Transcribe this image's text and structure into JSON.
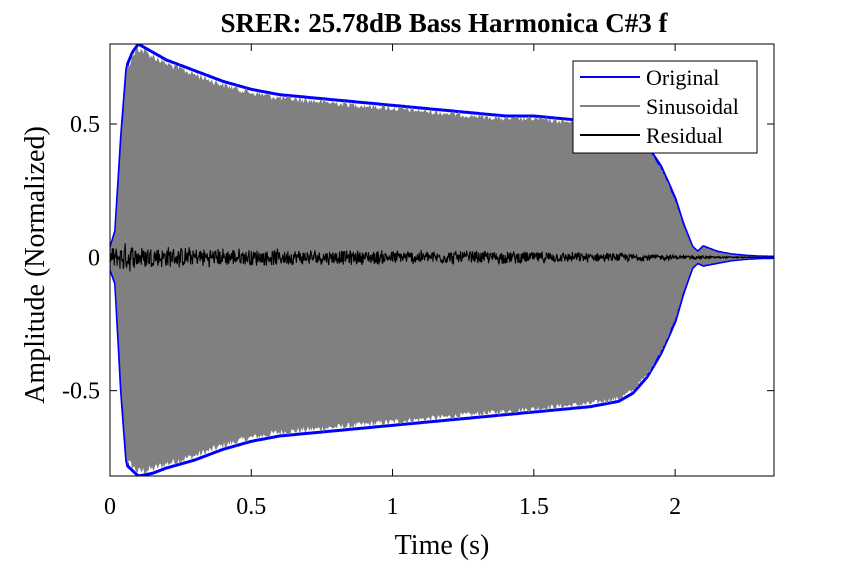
{
  "chart_data": {
    "type": "line",
    "title": "SRER: 25.78dB Bass Harmonica C#3 f",
    "xlabel": "Time (s)",
    "ylabel": "Amplitude (Normalized)",
    "xlim": [
      0,
      2.35
    ],
    "ylim": [
      -0.82,
      0.8
    ],
    "xticks": [
      0,
      0.5,
      1,
      1.5,
      2
    ],
    "xtick_labels": [
      "0",
      "0.5",
      "1",
      "1.5",
      "2"
    ],
    "yticks": [
      -0.5,
      0,
      0.5
    ],
    "ytick_labels": [
      "-0.5",
      "0",
      "0.5"
    ],
    "grid": false,
    "legend_position": "top-right",
    "series": [
      {
        "name": "Original",
        "color": "#0000ff",
        "envelope_x": [
          0,
          0.02,
          0.04,
          0.06,
          0.08,
          0.1,
          0.15,
          0.2,
          0.3,
          0.4,
          0.5,
          0.6,
          0.7,
          0.8,
          0.9,
          1.0,
          1.1,
          1.2,
          1.3,
          1.4,
          1.5,
          1.6,
          1.7,
          1.8,
          1.85,
          1.9,
          1.95,
          2.0,
          2.03,
          2.06,
          2.08,
          2.1,
          2.15,
          2.2,
          2.25,
          2.3,
          2.35
        ],
        "envelope_upper": [
          0.03,
          0.1,
          0.45,
          0.72,
          0.77,
          0.8,
          0.77,
          0.74,
          0.7,
          0.66,
          0.63,
          0.61,
          0.6,
          0.59,
          0.58,
          0.57,
          0.56,
          0.55,
          0.54,
          0.53,
          0.53,
          0.52,
          0.51,
          0.5,
          0.47,
          0.42,
          0.34,
          0.22,
          0.12,
          0.04,
          0.02,
          0.04,
          0.02,
          0.01,
          0.005,
          0.002,
          0.001
        ],
        "envelope_lower": [
          -0.04,
          -0.1,
          -0.5,
          -0.78,
          -0.8,
          -0.82,
          -0.81,
          -0.79,
          -0.76,
          -0.72,
          -0.69,
          -0.67,
          -0.66,
          -0.65,
          -0.64,
          -0.63,
          -0.62,
          -0.61,
          -0.6,
          -0.59,
          -0.58,
          -0.57,
          -0.56,
          -0.54,
          -0.51,
          -0.45,
          -0.36,
          -0.24,
          -0.13,
          -0.04,
          -0.02,
          -0.03,
          -0.02,
          -0.01,
          -0.005,
          -0.002,
          -0.001
        ]
      },
      {
        "name": "Sinusoidal",
        "color": "#808080"
      },
      {
        "name": "Residual",
        "color": "#000000",
        "envelope_x": [
          0,
          0.05,
          0.1,
          0.3,
          0.5,
          0.8,
          1.0,
          1.3,
          1.5,
          1.7,
          1.9,
          2.0,
          2.1,
          2.2,
          2.35
        ],
        "amplitude": [
          0.04,
          0.06,
          0.05,
          0.04,
          0.035,
          0.03,
          0.03,
          0.028,
          0.025,
          0.02,
          0.015,
          0.01,
          0.006,
          0.003,
          0.001
        ]
      }
    ]
  }
}
